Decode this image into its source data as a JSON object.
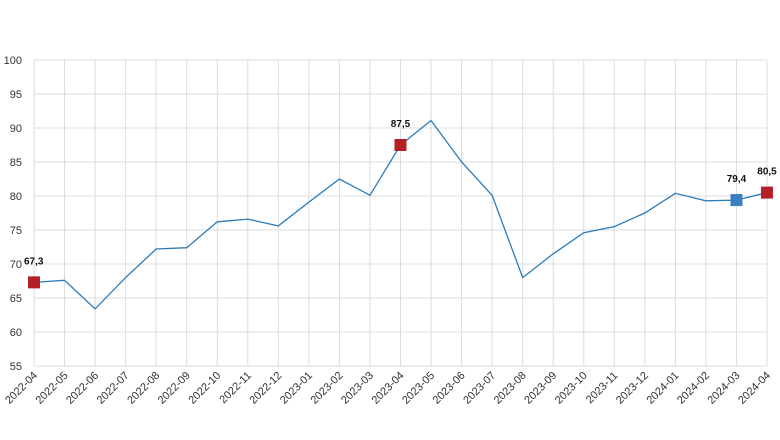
{
  "chart_data": {
    "type": "line",
    "x": [
      "2022-04",
      "2022-05",
      "2022-06",
      "2022-07",
      "2022-08",
      "2022-09",
      "2022-10",
      "2022-11",
      "2022-12",
      "2023-01",
      "2023-02",
      "2023-03",
      "2023-04",
      "2023-05",
      "2023-06",
      "2023-07",
      "2023-08",
      "2023-09",
      "2023-10",
      "2023-11",
      "2023-12",
      "2024-01",
      "2024-02",
      "2024-03",
      "2024-04"
    ],
    "series": [
      {
        "values": [
          67.3,
          67.6,
          63.4,
          68.0,
          72.2,
          72.4,
          76.2,
          76.6,
          75.6,
          79.1,
          82.5,
          80.1,
          87.5,
          91.1,
          85.0,
          80.1,
          68.0,
          71.5,
          74.6,
          75.5,
          77.5,
          80.4,
          79.3,
          79.4,
          80.5
        ],
        "color": "#2b7bba"
      }
    ],
    "highlights": [
      {
        "x": "2022-04",
        "value": 67.3,
        "label": "67,3",
        "color": "#b52026"
      },
      {
        "x": "2023-04",
        "value": 87.5,
        "label": "87,5",
        "color": "#b52026"
      },
      {
        "x": "2024-03",
        "value": 79.4,
        "label": "79,4",
        "color": "#3a7fc1"
      },
      {
        "x": "2024-04",
        "value": 80.5,
        "label": "80,5",
        "color": "#b52026"
      }
    ],
    "yticks": [
      "55",
      "60",
      "65",
      "70",
      "75",
      "80",
      "85",
      "90",
      "95",
      "100"
    ],
    "ylim": [
      55,
      100
    ],
    "grid": true,
    "legend": "none"
  }
}
